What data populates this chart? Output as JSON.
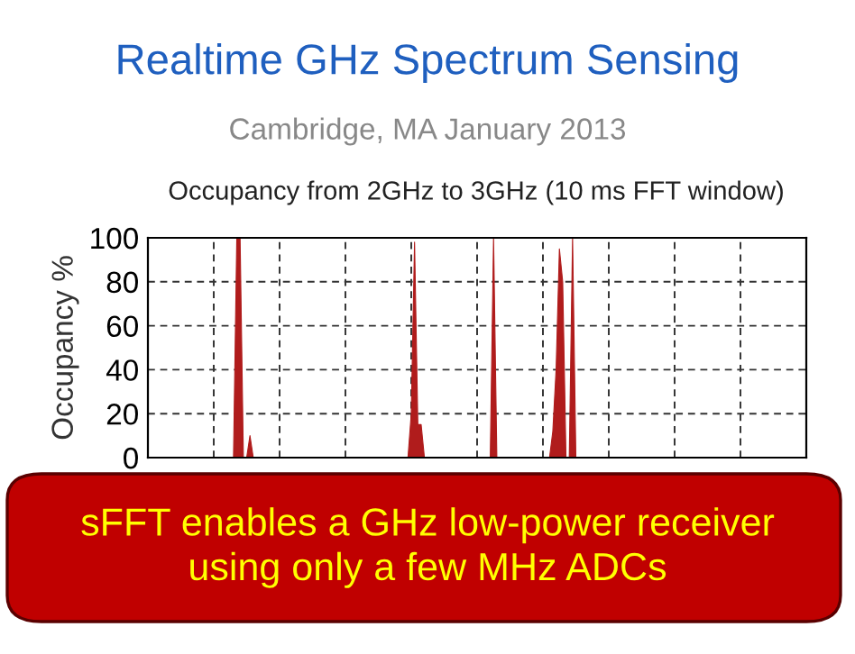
{
  "chart_data": {
    "type": "area",
    "title": "Realtime GHz Spectrum Sensing",
    "subtitle": "Cambridge, MA January 2013",
    "ylabel": "Occupancy %",
    "annotations": [
      "Occupancy from 2GHz to 3GHz (10 ms FFT window)",
      "sFFT enables a GHz low-power receiver\nusing only a few MHz ADCs"
    ],
    "categories": [
      null,
      null,
      null,
      null,
      null,
      null,
      null,
      null,
      null,
      null,
      null,
      null,
      null,
      null,
      null,
      null,
      null,
      null,
      null,
      null,
      null,
      null,
      null,
      null,
      null,
      null,
      null,
      null,
      null,
      null,
      null,
      null,
      null,
      null,
      null,
      null,
      null,
      null,
      null,
      null,
      null,
      null,
      null,
      null,
      null,
      null,
      null,
      null,
      null,
      null,
      null,
      null,
      null,
      null,
      null,
      null,
      null,
      null,
      null,
      null,
      null,
      null,
      null,
      null,
      null,
      null,
      null,
      null,
      null,
      null,
      null,
      null,
      null,
      null,
      null,
      null,
      null,
      null,
      null,
      null,
      null,
      null,
      null,
      null,
      null,
      null,
      null,
      null,
      null,
      null,
      null,
      null,
      null,
      null,
      null,
      null,
      null,
      null,
      null,
      null,
      null,
      null,
      null,
      null,
      null,
      null,
      null,
      null,
      null,
      null,
      null,
      null,
      null,
      null,
      null,
      null,
      null,
      null,
      null,
      null,
      null,
      null,
      null,
      null,
      null,
      null,
      null,
      null,
      null,
      null,
      null,
      null,
      null,
      null,
      null,
      null,
      null,
      null,
      null,
      null,
      null,
      null,
      null,
      null,
      null,
      null,
      null,
      null,
      null,
      null,
      null,
      null,
      null,
      null,
      null,
      null,
      null,
      null,
      null,
      null,
      null,
      null,
      null,
      null,
      null,
      null,
      null,
      null,
      null,
      null,
      null,
      null,
      null,
      null,
      null,
      null,
      null,
      null,
      null,
      null,
      null,
      null,
      null,
      null,
      null,
      null,
      null,
      null,
      null,
      null,
      null,
      null,
      null,
      null,
      null,
      null,
      null,
      null,
      null,
      null,
      null
    ],
    "series": [
      {
        "color": "#b01c1c",
        "values": [
          0,
          0,
          0,
          0,
          0,
          0,
          0,
          0,
          0,
          0,
          0,
          0,
          0,
          0,
          0,
          0,
          0,
          0,
          0,
          0,
          0,
          0,
          0,
          0,
          0,
          0,
          0,
          100,
          100,
          0,
          0,
          10,
          0,
          0,
          0,
          0,
          0,
          0,
          0,
          0,
          0,
          0,
          0,
          0,
          0,
          0,
          0,
          0,
          0,
          0,
          0,
          0,
          0,
          0,
          0,
          0,
          0,
          0,
          0,
          0,
          0,
          0,
          0,
          0,
          0,
          0,
          0,
          0,
          0,
          0,
          0,
          0,
          0,
          0,
          0,
          0,
          0,
          0,
          0,
          0,
          20,
          98,
          15,
          15,
          0,
          0,
          0,
          0,
          0,
          0,
          0,
          0,
          0,
          0,
          0,
          0,
          0,
          0,
          0,
          0,
          0,
          0,
          0,
          0,
          0,
          100,
          0,
          0,
          0,
          0,
          0,
          0,
          0,
          0,
          0,
          0,
          0,
          0,
          0,
          0,
          0,
          0,
          0,
          12,
          40,
          95,
          80,
          0,
          0,
          100,
          0,
          0,
          0,
          0,
          0,
          0,
          0,
          0,
          0,
          0,
          0,
          0,
          0,
          0,
          0,
          0,
          0,
          0,
          0,
          0,
          0,
          0,
          0,
          0,
          0,
          0,
          0,
          0,
          0,
          0,
          0,
          0,
          0,
          0,
          0,
          0,
          0,
          0,
          0,
          0,
          0,
          0,
          0,
          0,
          0,
          0,
          0,
          0,
          0,
          0,
          0,
          0,
          0,
          0,
          0,
          0,
          0,
          0,
          0,
          0,
          0,
          0,
          0,
          0,
          0,
          0,
          0,
          0,
          0,
          0,
          0
        ]
      }
    ],
    "ylim": [
      0,
      100
    ],
    "yticks": [
      0,
      20,
      40,
      60,
      80,
      100
    ],
    "grid": true,
    "tick_labels": "y"
  }
}
